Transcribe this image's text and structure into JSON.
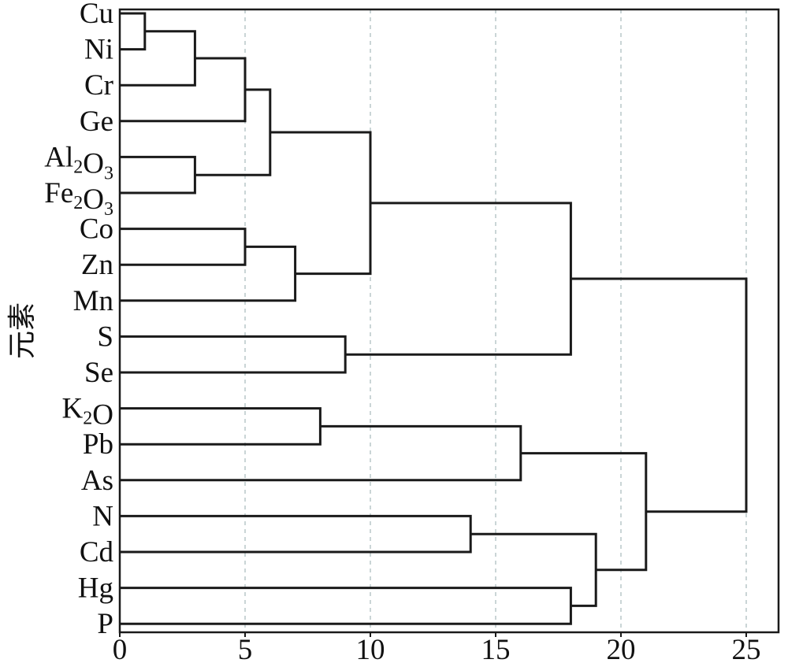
{
  "chart_data": {
    "type": "dendrogram",
    "ylabel": "元素",
    "xlabel": "",
    "xlim": [
      0,
      26
    ],
    "xticks": [
      0,
      5,
      10,
      15,
      20,
      25
    ],
    "grid": "vertical dashed",
    "leaves": [
      {
        "parts": [
          {
            "t": "Cu"
          }
        ]
      },
      {
        "parts": [
          {
            "t": "Ni"
          }
        ]
      },
      {
        "parts": [
          {
            "t": "Cr"
          }
        ]
      },
      {
        "parts": [
          {
            "t": "Ge"
          }
        ]
      },
      {
        "parts": [
          {
            "t": "Al"
          },
          {
            "t": "2",
            "sub": true
          },
          {
            "t": "O"
          },
          {
            "t": "3",
            "sub": true
          }
        ]
      },
      {
        "parts": [
          {
            "t": "Fe"
          },
          {
            "t": "2",
            "sub": true
          },
          {
            "t": "O"
          },
          {
            "t": "3",
            "sub": true
          }
        ]
      },
      {
        "parts": [
          {
            "t": "Co"
          }
        ]
      },
      {
        "parts": [
          {
            "t": "Zn"
          }
        ]
      },
      {
        "parts": [
          {
            "t": "Mn"
          }
        ]
      },
      {
        "parts": [
          {
            "t": "S"
          }
        ]
      },
      {
        "parts": [
          {
            "t": "Se"
          }
        ]
      },
      {
        "parts": [
          {
            "t": "K"
          },
          {
            "t": "2",
            "sub": true
          },
          {
            "t": "O"
          }
        ]
      },
      {
        "parts": [
          {
            "t": "Pb"
          }
        ]
      },
      {
        "parts": [
          {
            "t": "As"
          }
        ]
      },
      {
        "parts": [
          {
            "t": "N"
          }
        ]
      },
      {
        "parts": [
          {
            "t": "Cd"
          }
        ]
      },
      {
        "parts": [
          {
            "t": "Hg"
          }
        ]
      },
      {
        "parts": [
          {
            "t": "P"
          }
        ]
      }
    ],
    "merges": [
      {
        "a": "L0",
        "b": "L1",
        "height": 1
      },
      {
        "a": "M0",
        "b": "L2",
        "height": 3
      },
      {
        "a": "L4",
        "b": "L5",
        "height": 3
      },
      {
        "a": "M1",
        "b": "L3",
        "height": 5
      },
      {
        "a": "M3",
        "b": "M2",
        "height": 6
      },
      {
        "a": "L6",
        "b": "L7",
        "height": 5
      },
      {
        "a": "M5",
        "b": "L8",
        "height": 7
      },
      {
        "a": "M4",
        "b": "M6",
        "height": 10
      },
      {
        "a": "L9",
        "b": "L10",
        "height": 9
      },
      {
        "a": "M7",
        "b": "M8",
        "height": 18
      },
      {
        "a": "L11",
        "b": "L12",
        "height": 8
      },
      {
        "a": "M10",
        "b": "L13",
        "height": 16
      },
      {
        "a": "L14",
        "b": "L15",
        "height": 14
      },
      {
        "a": "L16",
        "b": "L17",
        "height": 18
      },
      {
        "a": "M12",
        "b": "M13",
        "height": 19
      },
      {
        "a": "M11",
        "b": "M14",
        "height": 21
      },
      {
        "a": "M9",
        "b": "M15",
        "height": 25
      }
    ]
  }
}
